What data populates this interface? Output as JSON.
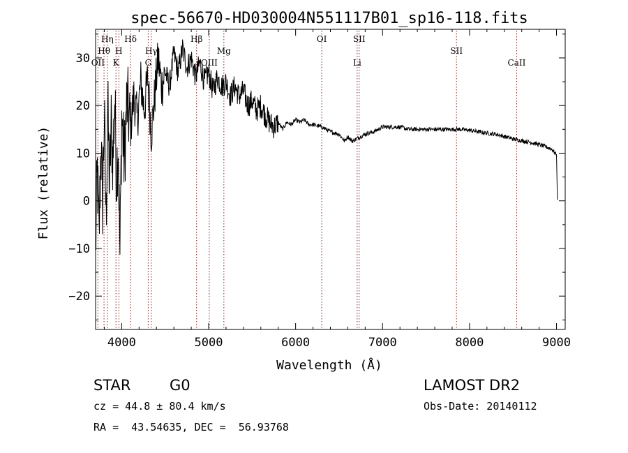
{
  "chart_data": {
    "type": "line",
    "title": "spec-56670-HD030004N551117B01_sp16-118.fits",
    "xlabel": "Wavelength (Å)",
    "ylabel": "Flux (relative)",
    "xlim": [
      3700,
      9100
    ],
    "ylim": [
      -27,
      36
    ],
    "x_ticks": [
      4000,
      5000,
      6000,
      7000,
      8000,
      9000
    ],
    "y_ticks": [
      -20,
      -10,
      0,
      10,
      20,
      30
    ],
    "grid": false,
    "line_color": "#000000",
    "marker_color": "#8b1a1a",
    "series": [
      {
        "x": [
          3700,
          3720,
          3740,
          3760,
          3780,
          3800,
          3820,
          3840,
          3860,
          3880,
          3900,
          3920,
          3940,
          3960,
          3980,
          4000,
          4030,
          4060,
          4100,
          4140,
          4180,
          4220,
          4260,
          4300,
          4340,
          4380,
          4420,
          4460,
          4500,
          4550,
          4600,
          4650,
          4700,
          4750,
          4800,
          4850,
          4900,
          4950,
          5000,
          5050,
          5100,
          5150,
          5200,
          5250,
          5300,
          5350,
          5400,
          5450,
          5500,
          5550,
          5600,
          5650,
          5700,
          5750,
          5800,
          5850,
          5900,
          5950,
          6000,
          6050,
          6100,
          6150,
          6200,
          6300,
          6400,
          6500,
          6563,
          6600,
          6650,
          6700,
          6800,
          6900,
          7000,
          7100,
          7200,
          7300,
          7400,
          7500,
          7600,
          7700,
          7800,
          7900,
          8000,
          8100,
          8200,
          8300,
          8400,
          8500,
          8600,
          8700,
          8800,
          8900,
          8950,
          9000,
          9010
        ],
        "y": [
          -10,
          6,
          -8,
          12,
          0,
          18,
          -4,
          20,
          3,
          16,
          8,
          22,
          5,
          13,
          -12,
          18,
          8,
          21,
          15,
          22,
          17,
          25,
          19,
          26,
          14,
          22,
          30,
          24,
          27,
          24,
          31,
          27,
          32,
          28,
          30,
          26,
          29,
          25,
          27,
          23,
          26,
          24,
          25,
          22,
          24,
          22,
          23,
          20,
          21,
          19,
          20,
          18,
          16.5,
          15.5,
          16.5,
          15,
          16.5,
          16,
          17,
          16.5,
          17,
          16,
          16,
          15.5,
          14.5,
          14,
          12.5,
          13.5,
          12.5,
          13,
          14,
          14.5,
          15.5,
          15.5,
          15.5,
          15,
          15,
          15,
          15,
          15,
          15,
          15,
          14.8,
          14.5,
          14.2,
          14,
          13.5,
          13,
          12.6,
          12.3,
          11.8,
          11.2,
          10.8,
          9.6,
          0.2
        ]
      }
    ],
    "line_markers": [
      {
        "label": "Hη",
        "x": 3835,
        "row": 0
      },
      {
        "label": "Hθ",
        "x": 3797,
        "row": 1
      },
      {
        "label": "OII",
        "x": 3727,
        "row": 2
      },
      {
        "label": "H",
        "x": 3968,
        "row": 1
      },
      {
        "label": "K",
        "x": 3934,
        "row": 2
      },
      {
        "label": "Hδ",
        "x": 4102,
        "row": 0
      },
      {
        "label": "Hγ",
        "x": 4340,
        "row": 1
      },
      {
        "label": "G",
        "x": 4305,
        "row": 2
      },
      {
        "label": "Hβ",
        "x": 4861,
        "row": 0
      },
      {
        "label": "OIII",
        "x": 5007,
        "row": 2
      },
      {
        "label": "Mg",
        "x": 5175,
        "row": 1
      },
      {
        "label": "OI",
        "x": 6300,
        "row": 0
      },
      {
        "label": "SII",
        "x": 6731,
        "row": 0
      },
      {
        "label": "Li",
        "x": 6708,
        "row": 2
      },
      {
        "label": "SII",
        "x": 7850,
        "row": 1
      },
      {
        "label": "CaII",
        "x": 8542,
        "row": 2
      }
    ]
  },
  "info": {
    "type_label": "STAR",
    "subclass": "G0",
    "survey": "LAMOST DR2",
    "cz": "cz = 44.8 ± 80.4 km/s",
    "obs_date": "Obs-Date: 20140112",
    "radec": "RA =  43.54635, DEC =  56.93768"
  }
}
